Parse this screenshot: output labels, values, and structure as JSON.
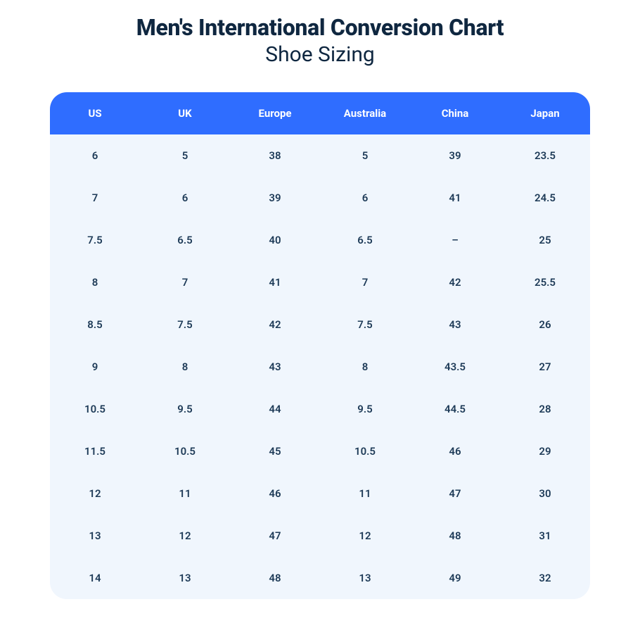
{
  "title": {
    "main": "Men's International Conversion Chart",
    "sub": "Shoe Sizing"
  },
  "table": {
    "type": "table",
    "header_bg": "#2f6dff",
    "header_text_color": "#ffffff",
    "body_bg": "#f0f6fd",
    "body_text_color": "#1d3a57",
    "border_radius": 24,
    "header_font_weight": 700,
    "cell_font_weight": 600,
    "font_size": 15,
    "columns": [
      "US",
      "UK",
      "Europe",
      "Australia",
      "China",
      "Japan"
    ],
    "rows": [
      [
        "6",
        "5",
        "38",
        "5",
        "39",
        "23.5"
      ],
      [
        "7",
        "6",
        "39",
        "6",
        "41",
        "24.5"
      ],
      [
        "7.5",
        "6.5",
        "40",
        "6.5",
        "–",
        "25"
      ],
      [
        "8",
        "7",
        "41",
        "7",
        "42",
        "25.5"
      ],
      [
        "8.5",
        "7.5",
        "42",
        "7.5",
        "43",
        "26"
      ],
      [
        "9",
        "8",
        "43",
        "8",
        "43.5",
        "27"
      ],
      [
        "10.5",
        "9.5",
        "44",
        "9.5",
        "44.5",
        "28"
      ],
      [
        "11.5",
        "10.5",
        "45",
        "10.5",
        "46",
        "29"
      ],
      [
        "12",
        "11",
        "46",
        "11",
        "47",
        "30"
      ],
      [
        "13",
        "12",
        "47",
        "12",
        "48",
        "31"
      ],
      [
        "14",
        "13",
        "48",
        "13",
        "49",
        "32"
      ]
    ]
  }
}
